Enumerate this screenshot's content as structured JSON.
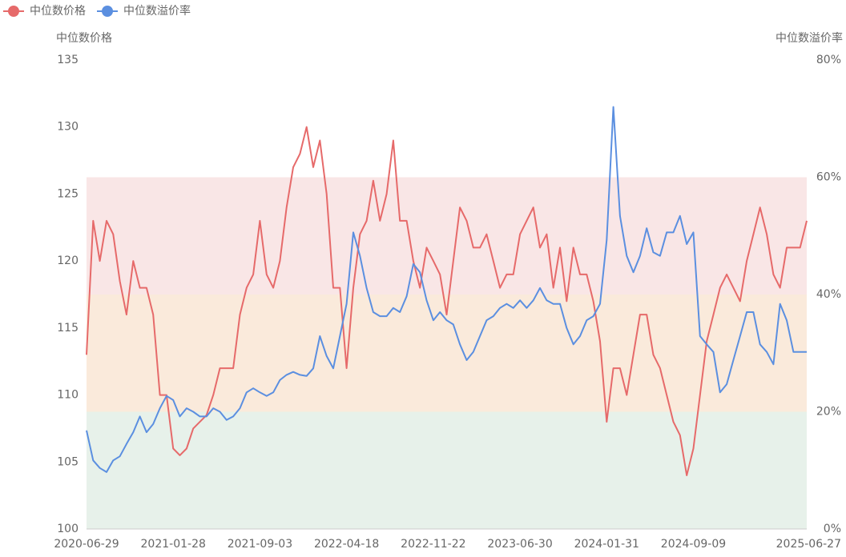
{
  "chart_data": {
    "type": "line",
    "y_label": "中位数价格",
    "y2_label": "中位数溢价率",
    "categories": [
      "2020-06-29",
      null,
      null,
      null,
      null,
      null,
      null,
      null,
      null,
      null,
      null,
      null,
      null,
      "2021-01-28",
      null,
      null,
      null,
      null,
      null,
      null,
      null,
      null,
      null,
      null,
      null,
      null,
      "2021-09-03",
      null,
      null,
      null,
      null,
      null,
      null,
      null,
      null,
      null,
      null,
      null,
      null,
      "2022-04-18",
      null,
      null,
      null,
      null,
      null,
      null,
      null,
      null,
      null,
      null,
      null,
      null,
      "2022-11-22",
      null,
      null,
      null,
      null,
      null,
      null,
      null,
      null,
      null,
      null,
      null,
      null,
      "2023-06-30",
      null,
      null,
      null,
      null,
      null,
      null,
      null,
      null,
      null,
      null,
      null,
      null,
      "2024-01-31",
      null,
      null,
      null,
      null,
      null,
      null,
      null,
      null,
      null,
      null,
      null,
      null,
      "2024-09-09",
      null,
      null,
      null,
      null,
      null,
      null,
      null,
      null,
      null,
      null,
      null,
      null,
      null,
      null,
      null,
      null,
      "2025-06-27"
    ],
    "series": [
      {
        "name": "中位数价格",
        "color": "#e66a6a",
        "axis": "y",
        "values": [
          113,
          123,
          120,
          123,
          122,
          118.5,
          116,
          120,
          118,
          118,
          116,
          110,
          110,
          106,
          105.5,
          106,
          107.5,
          108,
          108.5,
          110,
          112,
          112,
          112,
          116,
          118,
          119,
          123,
          119,
          118,
          120,
          124,
          127,
          128,
          130,
          127,
          129,
          125,
          118,
          118,
          112,
          118,
          122,
          123,
          126,
          123,
          125,
          129,
          123,
          123,
          120,
          118,
          121,
          120,
          119,
          116,
          120,
          124,
          123,
          121,
          121,
          122,
          120,
          118,
          119,
          119,
          122,
          123,
          124,
          121,
          122,
          118,
          121,
          117,
          121,
          119,
          119,
          117,
          114,
          108,
          112,
          112,
          110,
          113,
          116,
          116,
          113,
          112,
          110,
          108,
          107,
          104,
          106,
          110,
          114,
          116,
          118,
          119,
          118,
          117,
          120,
          122,
          124,
          122,
          119,
          118,
          121,
          121,
          121,
          123
        ]
      },
      {
        "name": "中位数溢价率",
        "color": "#5b8fe0",
        "axis": "y2",
        "values": [
          16.8,
          11.7,
          10.4,
          9.7,
          11.7,
          12.4,
          14.5,
          16.5,
          19.2,
          16.5,
          17.9,
          20.6,
          22.7,
          22,
          19.2,
          20.6,
          20,
          19.2,
          19.2,
          20.6,
          20,
          18.6,
          19.2,
          20.6,
          23.3,
          24,
          23.3,
          22.7,
          23.3,
          25.4,
          26.3,
          26.8,
          26.3,
          26.1,
          27.4,
          32.9,
          29.5,
          27.4,
          32.9,
          38.4,
          50.6,
          46.6,
          41.1,
          37,
          36.3,
          36.3,
          37.7,
          37,
          39.7,
          45.2,
          43.8,
          39,
          35.6,
          37,
          35.6,
          34.9,
          31.5,
          28.8,
          30.2,
          32.9,
          35.6,
          36.3,
          37.7,
          38.4,
          37.7,
          39,
          37.7,
          39,
          41.1,
          39,
          38.4,
          38.4,
          34.3,
          31.5,
          32.9,
          35.6,
          36.3,
          38.4,
          49.3,
          72,
          53.4,
          46.6,
          43.8,
          46.6,
          51.3,
          47.2,
          46.6,
          50.6,
          50.6,
          53.4,
          48.6,
          50.6,
          32.9,
          31.5,
          30.2,
          23.3,
          24.7,
          28.8,
          32.9,
          37,
          37,
          31.5,
          30.2,
          28.1,
          38.4,
          35.6,
          30.2,
          30.2,
          30.2
        ]
      }
    ],
    "ylim": [
      100,
      135
    ],
    "yticks": [
      100,
      105,
      110,
      115,
      120,
      125,
      130,
      135
    ],
    "y2lim": [
      0,
      80
    ],
    "y2ticks": [
      {
        "value": 0,
        "label": "0%"
      },
      {
        "value": 20,
        "label": "20%"
      },
      {
        "value": 40,
        "label": "40%"
      },
      {
        "value": 60,
        "label": "60%"
      },
      {
        "value": 80,
        "label": "80%"
      }
    ],
    "mark_areas": [
      {
        "axis": "y2",
        "range": [
          40,
          60
        ],
        "color": "#f9e6e6"
      },
      {
        "axis": "y2",
        "range": [
          20,
          40
        ],
        "color": "#faeadb"
      },
      {
        "axis": "y2",
        "range": [
          0,
          20
        ],
        "color": "#e7f1ea"
      }
    ],
    "legend": "top-left",
    "grid": false
  }
}
